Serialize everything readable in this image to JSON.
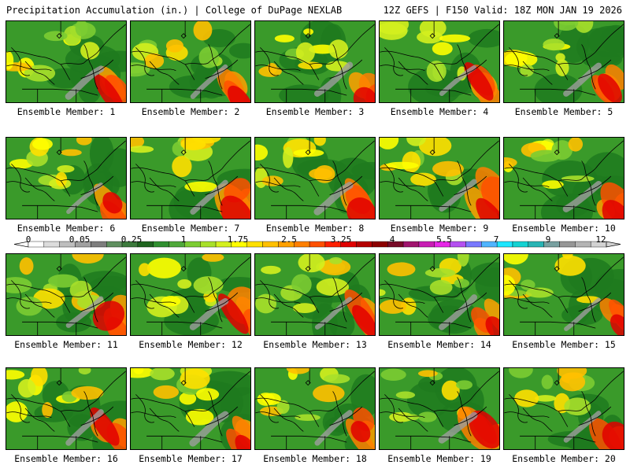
{
  "header": {
    "title_left": "Precipitation Accumulation (in.) | College of DuPage NEXLAB",
    "title_right": "12Z GEFS | F150 Valid: 18Z MON JAN 19 2026"
  },
  "members": [
    {
      "label": "Ensemble Member: 1",
      "n": 1
    },
    {
      "label": "Ensemble Member: 2",
      "n": 2
    },
    {
      "label": "Ensemble Member: 3",
      "n": 3
    },
    {
      "label": "Ensemble Member: 4",
      "n": 4
    },
    {
      "label": "Ensemble Member: 5",
      "n": 5
    },
    {
      "label": "Ensemble Member: 6",
      "n": 6
    },
    {
      "label": "Ensemble Member: 7",
      "n": 7
    },
    {
      "label": "Ensemble Member: 8",
      "n": 8
    },
    {
      "label": "Ensemble Member: 9",
      "n": 9
    },
    {
      "label": "Ensemble Member: 10",
      "n": 10
    },
    {
      "label": "Ensemble Member: 11",
      "n": 11
    },
    {
      "label": "Ensemble Member: 12",
      "n": 12
    },
    {
      "label": "Ensemble Member: 13",
      "n": 13
    },
    {
      "label": "Ensemble Member: 14",
      "n": 14
    },
    {
      "label": "Ensemble Member: 15",
      "n": 15
    },
    {
      "label": "Ensemble Member: 16",
      "n": 16
    },
    {
      "label": "Ensemble Member: 17",
      "n": 17
    },
    {
      "label": "Ensemble Member: 18",
      "n": 18
    },
    {
      "label": "Ensemble Member: 19",
      "n": 19
    },
    {
      "label": "Ensemble Member: 20",
      "n": 20
    }
  ],
  "colorbar": {
    "tick_labels": [
      "0",
      "0.05",
      "0.25",
      "1",
      "1.75",
      "2.5",
      "3.25",
      "4",
      "5.5",
      "7",
      "9",
      "12"
    ],
    "colors": [
      "#ffffff",
      "#dcdcdc",
      "#bebebe",
      "#a0a0a0",
      "#7d7d7d",
      "#5f8f5f",
      "#3c7a3c",
      "#1e641e",
      "#2f8f2f",
      "#4fa83a",
      "#7ccc32",
      "#a8e02a",
      "#d4f01e",
      "#ffff00",
      "#ffe000",
      "#ffc000",
      "#ffa000",
      "#ff7f00",
      "#ff5000",
      "#ff2000",
      "#e00000",
      "#b40000",
      "#8b0000",
      "#780a28",
      "#a0146e",
      "#c81eb4",
      "#e628e6",
      "#b450f0",
      "#7878ff",
      "#50b4ff",
      "#1ee6ff",
      "#14d2d2",
      "#28b4b4",
      "#78a0a0",
      "#969696",
      "#b4b4b4",
      "#d2d2d2"
    ]
  }
}
